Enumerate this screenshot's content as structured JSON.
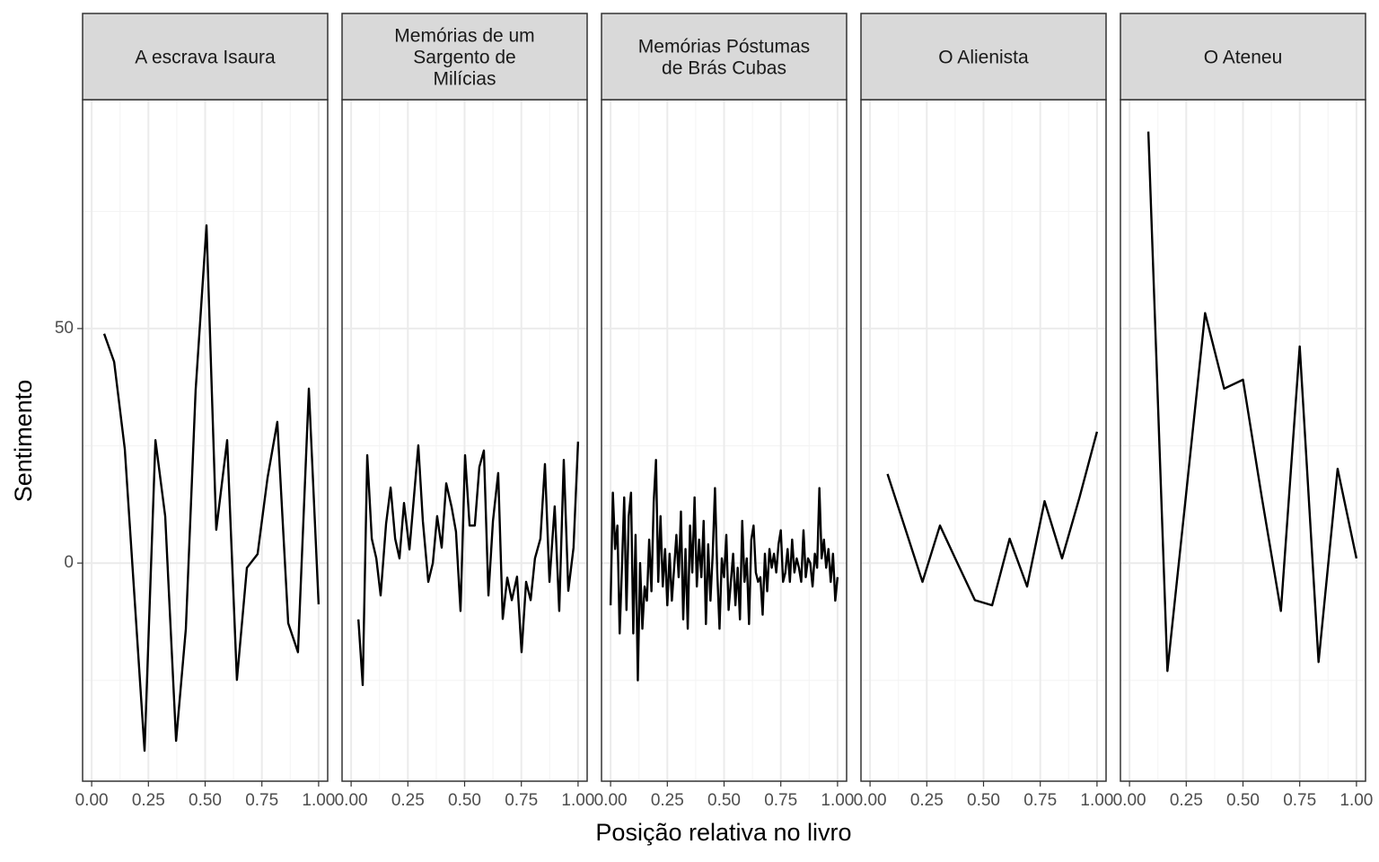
{
  "chart_data": {
    "type": "line",
    "color": "#000000",
    "grid": true,
    "xlabel": "Posição relativa no livro",
    "ylabel": "Sentimento",
    "xlim": [
      -0.04,
      1.04
    ],
    "ylim": [
      -46.5,
      98.8
    ],
    "yticks": [
      0,
      50
    ],
    "yminor": [
      -25,
      25,
      75
    ],
    "xticks": [
      {
        "value": 0,
        "label": "0.00"
      },
      {
        "value": 0.25,
        "label": "0.25"
      },
      {
        "value": 0.5,
        "label": "0.50"
      },
      {
        "value": 0.75,
        "label": "0.75"
      },
      {
        "value": 1,
        "label": "1.00"
      }
    ],
    "xminor": [
      0.125,
      0.375,
      0.625,
      0.875
    ],
    "panels": [
      {
        "title": [
          "A escrava Isaura"
        ],
        "x": [
          0.055,
          0.099,
          0.146,
          0.233,
          0.281,
          0.324,
          0.372,
          0.415,
          0.458,
          0.506,
          0.549,
          0.597,
          0.64,
          0.684,
          0.731,
          0.775,
          0.818,
          0.866,
          0.909,
          0.957,
          1.0
        ],
        "values": [
          48.9,
          42.9,
          24.3,
          -40,
          26.2,
          10,
          -37.9,
          -14,
          36.8,
          72,
          7.1,
          26.2,
          -24.9,
          -1,
          1.9,
          18.2,
          30.1,
          -12.8,
          -19,
          37.2,
          -8.8
        ]
      },
      {
        "title": [
          "Memórias de um",
          "Sargento de",
          "Milícias"
        ],
        "x": [
          0.032,
          0.051,
          0.071,
          0.091,
          0.111,
          0.13,
          0.154,
          0.174,
          0.194,
          0.213,
          0.233,
          0.257,
          0.277,
          0.296,
          0.316,
          0.34,
          0.36,
          0.379,
          0.399,
          0.419,
          0.443,
          0.462,
          0.482,
          0.502,
          0.522,
          0.545,
          0.565,
          0.585,
          0.605,
          0.625,
          0.648,
          0.668,
          0.688,
          0.708,
          0.731,
          0.751,
          0.771,
          0.791,
          0.81,
          0.834,
          0.854,
          0.874,
          0.897,
          0.917,
          0.937,
          0.957,
          0.98,
          1.0
        ],
        "values": [
          -12,
          -26,
          23,
          5.2,
          1,
          -6.9,
          8.4,
          16.1,
          5.2,
          1,
          12.8,
          2.9,
          14.2,
          25.1,
          9,
          -4,
          0,
          10,
          3.3,
          17,
          11.9,
          6.7,
          -10.2,
          23,
          8,
          8,
          20.5,
          24,
          -6.9,
          9,
          19.2,
          -11.9,
          -3.1,
          -7.9,
          -2.9,
          -19,
          -4,
          -7.9,
          1,
          5.2,
          21.1,
          -4,
          12.1,
          -10.2,
          22,
          -5.9,
          3.3,
          25.9
        ]
      },
      {
        "title": [
          "Memórias Póstumas",
          "de Brás Cubas"
        ],
        "x": [
          0.0,
          0.01,
          0.02,
          0.03,
          0.04,
          0.05,
          0.06,
          0.07,
          0.08,
          0.09,
          0.1,
          0.11,
          0.12,
          0.13,
          0.14,
          0.15,
          0.16,
          0.17,
          0.18,
          0.19,
          0.2,
          0.21,
          0.22,
          0.23,
          0.24,
          0.25,
          0.26,
          0.27,
          0.28,
          0.29,
          0.3,
          0.31,
          0.32,
          0.33,
          0.34,
          0.35,
          0.36,
          0.37,
          0.38,
          0.39,
          0.4,
          0.41,
          0.42,
          0.43,
          0.44,
          0.45,
          0.46,
          0.47,
          0.48,
          0.49,
          0.5,
          0.51,
          0.52,
          0.53,
          0.54,
          0.55,
          0.56,
          0.57,
          0.58,
          0.59,
          0.6,
          0.61,
          0.62,
          0.63,
          0.64,
          0.65,
          0.66,
          0.67,
          0.68,
          0.69,
          0.7,
          0.71,
          0.72,
          0.73,
          0.74,
          0.75,
          0.76,
          0.77,
          0.78,
          0.79,
          0.8,
          0.81,
          0.82,
          0.83,
          0.84,
          0.85,
          0.86,
          0.87,
          0.88,
          0.89,
          0.9,
          0.91,
          0.92,
          0.93,
          0.94,
          0.95,
          0.96,
          0.97,
          0.98,
          0.99,
          1.0
        ],
        "values": [
          -9,
          15,
          3,
          8,
          -15,
          -1,
          14,
          -10,
          10,
          15,
          -15,
          6,
          -25,
          0,
          -14,
          -5,
          -8,
          5,
          -6,
          13,
          22,
          -4,
          10,
          -5,
          3,
          -9,
          2,
          -8,
          -1,
          6,
          -3,
          11,
          -12,
          3,
          -14,
          8,
          -2,
          14,
          -5,
          5,
          -3,
          9,
          -13,
          4,
          -8,
          2,
          16,
          -2,
          -14,
          1,
          -3,
          6,
          -10,
          -4,
          2,
          -9,
          -1,
          -12,
          9,
          -4,
          1,
          -13,
          5,
          8,
          -2,
          -4,
          -3,
          -11,
          2,
          -6,
          3,
          -1,
          2,
          -2,
          4,
          7,
          -4,
          -2,
          3,
          -4,
          5,
          -2,
          1,
          -1,
          -4,
          7,
          -3,
          1,
          0,
          -5,
          2,
          -1,
          16,
          1,
          5,
          -1,
          3,
          -4,
          2,
          -8,
          -3
        ]
      },
      {
        "title": [
          "O Alienista"
        ],
        "x": [
          0.077,
          0.154,
          0.231,
          0.308,
          0.385,
          0.462,
          0.538,
          0.615,
          0.692,
          0.769,
          0.846,
          0.923,
          1.0
        ],
        "values": [
          19,
          7.5,
          -4,
          8,
          0,
          -7.9,
          -9,
          5.2,
          -5,
          13.2,
          1,
          14,
          28
        ]
      },
      {
        "title": [
          "O Ateneu"
        ],
        "x": [
          0.083,
          0.167,
          0.25,
          0.333,
          0.417,
          0.5,
          0.583,
          0.667,
          0.75,
          0.833,
          0.917,
          1.0
        ],
        "values": [
          92,
          -23,
          15,
          53.3,
          37.2,
          39.1,
          14,
          -10.2,
          46.2,
          -21.1,
          20.1,
          1
        ]
      }
    ]
  }
}
